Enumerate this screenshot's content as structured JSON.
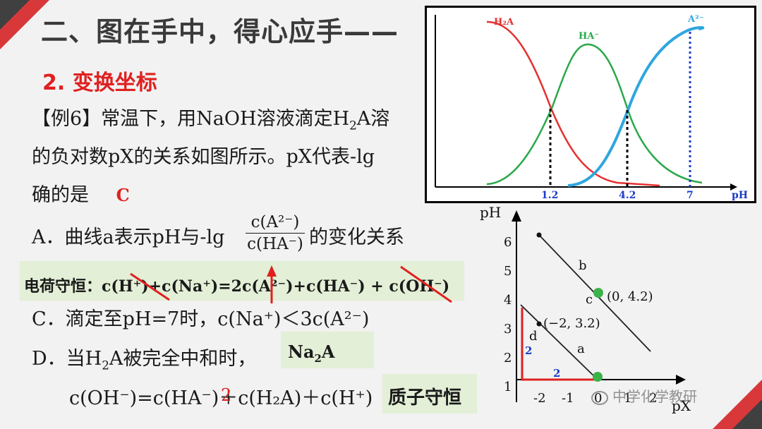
{
  "title": "二、图在手中，得心应手——",
  "section": "2. 变换坐标",
  "example": {
    "line1_prefix": "【例6】常温下，用NaOH溶液滴定H",
    "line1_sub": "2",
    "line1_suffix": "A溶",
    "line2": "的负对数pX的关系如图所示。pX代表-lg",
    "line3": "确的是",
    "answer": "C"
  },
  "option_a": {
    "text_before": "A．曲线a表示pH与-lg",
    "frac_num": "c(A²⁻)",
    "frac_den": "c(HA⁻)",
    "text_after": "的变化关系"
  },
  "charge_note": {
    "label": "电荷守恒：",
    "formula": "c(H⁺)+c(Na⁺)=2c(A²⁻)+c(HA⁻) + c(OH⁻)"
  },
  "option_c": "C．滴定至pH=7时，c(Na⁺)＜3c(A²⁻)",
  "option_d": {
    "prefix": "D．当H",
    "sub": "2",
    "suffix": "A被完全中和时，",
    "note_prefix": "Na",
    "note_sub": "2",
    "note_suffix": "A",
    "line2": "c(OH⁻)=c(HA⁻)＋c(H₂A)＋c(H⁺)",
    "insert_mark": "2"
  },
  "proton_note": "质子守恒",
  "top_chart": {
    "labels": [
      "H₂A",
      "HA⁻",
      "A²⁻"
    ],
    "x_ticks": [
      "1.2",
      "4.2",
      "7"
    ],
    "x_label": "pH",
    "colors": {
      "h2a": "#e53030",
      "ha": "#2aa84a",
      "a2": "#2fa6e0",
      "tick": "#1a3cc8"
    }
  },
  "bottom_chart": {
    "y_label": "pH",
    "x_label": "pX",
    "y_ticks": [
      "1",
      "2",
      "3",
      "4",
      "5",
      "6"
    ],
    "x_ticks": [
      "-2",
      "-1",
      "0",
      "1",
      "2"
    ],
    "line_labels": [
      "a",
      "b",
      "c",
      "d"
    ],
    "point_labels": [
      "(0, 4.2)",
      "(−2, 3.2)"
    ],
    "triangle_labels": [
      "2",
      "2"
    ]
  },
  "watermark": "中学化学教研"
}
